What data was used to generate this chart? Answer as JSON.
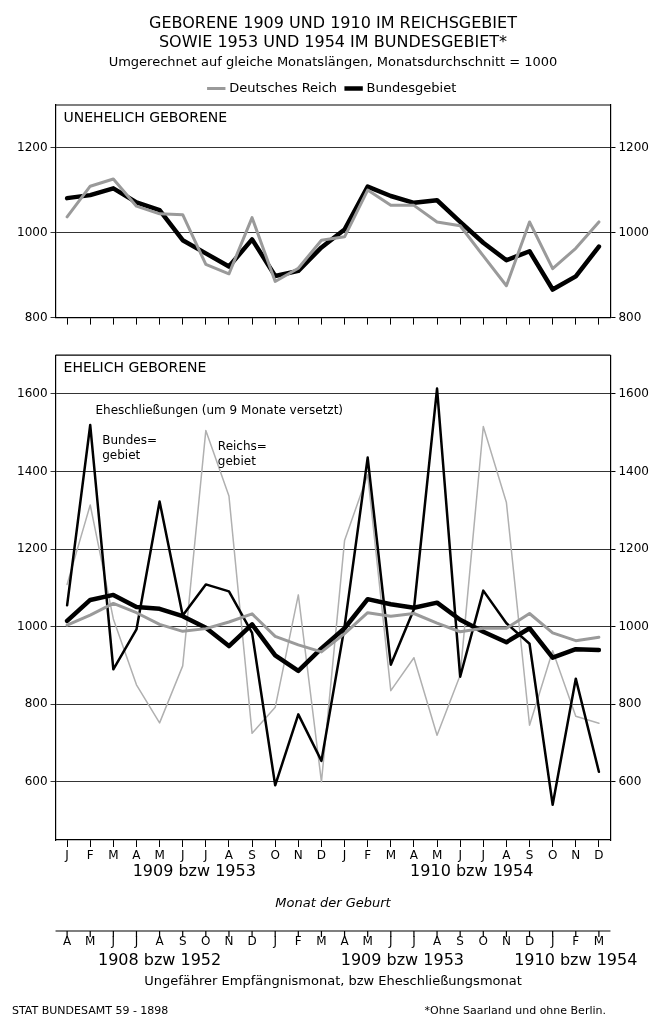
{
  "chart_data": [
    {
      "type": "line",
      "title": "GEBORENE 1909 UND 1910 IM REICHSGEBIET SOWIE 1953 UND 1954 IM BUNDESGEBIET*",
      "subtitle": "Umgerechnet auf gleiche Monatslängen, Monatsdurchschnitt = 1000",
      "categories": [
        null,
        null,
        null,
        null,
        null,
        null,
        null,
        null,
        null,
        null,
        null,
        null,
        null,
        null,
        null,
        null,
        null,
        null,
        null,
        null,
        null,
        null,
        null,
        null
      ],
      "series": [
        {
          "name": "Deutsches Reich",
          "color": "#9a9a9a",
          "values": [
            1037,
            1109,
            1126,
            1062,
            1044,
            1042,
            925,
            903,
            1035,
            885,
            916,
            982,
            990,
            1100,
            1064,
            1064,
            1025,
            1016,
            945,
            875,
            1025,
            915,
            963,
            1025
          ]
        },
        {
          "name": "Bundesgebiet",
          "color": "#000000",
          "values": [
            1081,
            1088,
            1104,
            1071,
            1053,
            982,
            951,
            920,
            984,
            898,
            910,
            965,
            1007,
            1108,
            1086,
            1070,
            1076,
            1025,
            976,
            935,
            956,
            866,
            897,
            967
          ]
        }
      ],
      "ylim": [
        800,
        1300
      ],
      "yticks": [
        800,
        1000,
        1200
      ],
      "y2lim": [
        800,
        1300
      ],
      "y2ticks": [
        800,
        1000,
        1200
      ],
      "annotations": [
        "UNEHELICH GEBORENE"
      ],
      "grid": "y",
      "legend": "top"
    },
    {
      "type": "line",
      "title": "EHELICH GEBORENE",
      "xlabel": "Monat der Geburt",
      "x2label": "Ungefährer Empfängnismonat, bzw Eheschließungsmonat",
      "categories": [
        "J",
        "F",
        "M",
        "A",
        "M",
        "J",
        "J",
        "A",
        "S",
        "O",
        "N",
        "D",
        "J",
        "F",
        "M",
        "A",
        "M",
        "J",
        "J",
        "A",
        "S",
        "O",
        "N",
        "D"
      ],
      "series": [
        {
          "color": "#9a9a9a",
          "values": [
            1004,
            1030,
            1060,
            1036,
            1006,
            988,
            995,
            1012,
            1033,
            975,
            953,
            935,
            982,
            1036,
            1027,
            1034,
            1009,
            987,
            996,
            996,
            1034,
            984,
            964,
            973
          ]
        },
        {
          "color": "#000000",
          "values": [
            1015,
            1069,
            1082,
            1051,
            1046,
            1027,
            997,
            950,
            1006,
            926,
            886,
            944,
            996,
            1071,
            1058,
            1049,
            1062,
            1018,
            987,
            960,
            996,
            920,
            942,
            940
          ]
        },
        {
          "name": "Bundes= gebiet",
          "color": "#000000",
          "values": [
            1055,
            1520,
            890,
            993,
            1323,
            1029,
            1109,
            1091,
            984,
            591,
            774,
            654,
            1000,
            1436,
            902,
            1045,
            1614,
            871,
            1093,
            1009,
            956,
            541,
            866,
            626
          ]
        },
        {
          "name": "Reichs= gebiet",
          "color": "#b0b0b0",
          "values": [
            1109,
            1314,
            1020,
            850,
            752,
            899,
            1506,
            1337,
            725,
            792,
            1082,
            600,
            1222,
            1392,
            835,
            920,
            720,
            875,
            1516,
            1320,
            746,
            938,
            769,
            751
          ]
        }
      ],
      "ylim": [
        450,
        1700
      ],
      "yticks": [
        600,
        800,
        1000,
        1200,
        1400,
        1600
      ],
      "y2lim": [
        450,
        1700
      ],
      "y2ticks": [
        600,
        800,
        1000,
        1200,
        1400,
        1600
      ],
      "annotations": [
        "Eheschließungen (um 9 Monate versetzt)",
        "1909 bzw 1953",
        "1910 bzw 1954",
        "1908 bzw 1952",
        "1909 bzw 1953",
        "1910 bzw 1954",
        "*Ohne Saarland und ohne Berlin.",
        "STAT BUNDESAMT 59 - 1898",
        "A",
        "M",
        "J",
        "J",
        "A",
        "S",
        "O",
        "N",
        "D",
        "J",
        "F",
        "M",
        "A",
        "M",
        "J",
        "J",
        "A",
        "S",
        "O",
        "N",
        "D",
        "J",
        "F",
        "M"
      ],
      "grid": "y",
      "legend": false
    }
  ]
}
